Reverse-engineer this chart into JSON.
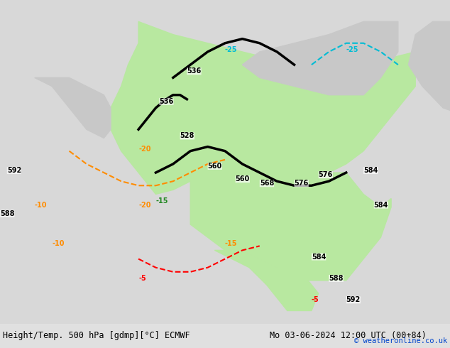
{
  "title_left": "Height/Temp. 500 hPa [gdmp][°C] ECMWF",
  "title_right": "Mo 03-06-2024 12:00 UTC (00+84)",
  "copyright": "© weatheronline.co.uk",
  "bg_color": "#d0d0d0",
  "map_bg_color": "#d3d3d3",
  "land_green_color": "#b8e8a0",
  "land_gray_color": "#c8c8c8",
  "contour_black_color": "#000000",
  "contour_orange_color": "#ff8c00",
  "contour_red_color": "#ff0000",
  "contour_cyan_color": "#00bcd4",
  "contour_green_color": "#90ee90",
  "contour_blue_color": "#4488ff",
  "footer_bg": "#e8e8e8",
  "figsize": [
    6.34,
    4.9
  ],
  "dpi": 100
}
